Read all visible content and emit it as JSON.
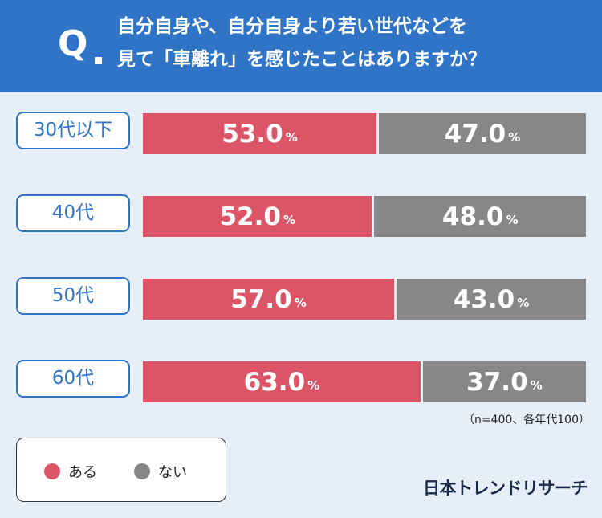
{
  "question": {
    "mark": "Q",
    "line1": "自分自身や、自分自身より若い世代などを",
    "line2": "見て「車離れ」を感じたことはありますか？"
  },
  "chart_data": {
    "type": "bar",
    "stacked": true,
    "orientation": "horizontal",
    "categories": [
      "30代以下",
      "40代",
      "50代",
      "60代"
    ],
    "series": [
      {
        "name": "ある",
        "values": [
          53.0,
          52.0,
          57.0,
          63.0
        ],
        "color": "#dc5567"
      },
      {
        "name": "ない",
        "values": [
          47.0,
          48.0,
          43.0,
          37.0
        ],
        "color": "#878787"
      }
    ],
    "unit": "%",
    "xlim": [
      0,
      100
    ]
  },
  "note": "（n=400、各年代100）",
  "legend": [
    {
      "label": "ある",
      "color": "#dc5567"
    },
    {
      "label": "ない",
      "color": "#878787"
    }
  ],
  "logo": "日本トレンドリサーチ",
  "colors": {
    "header": "#2f74c7",
    "background": "#e6eef8"
  }
}
